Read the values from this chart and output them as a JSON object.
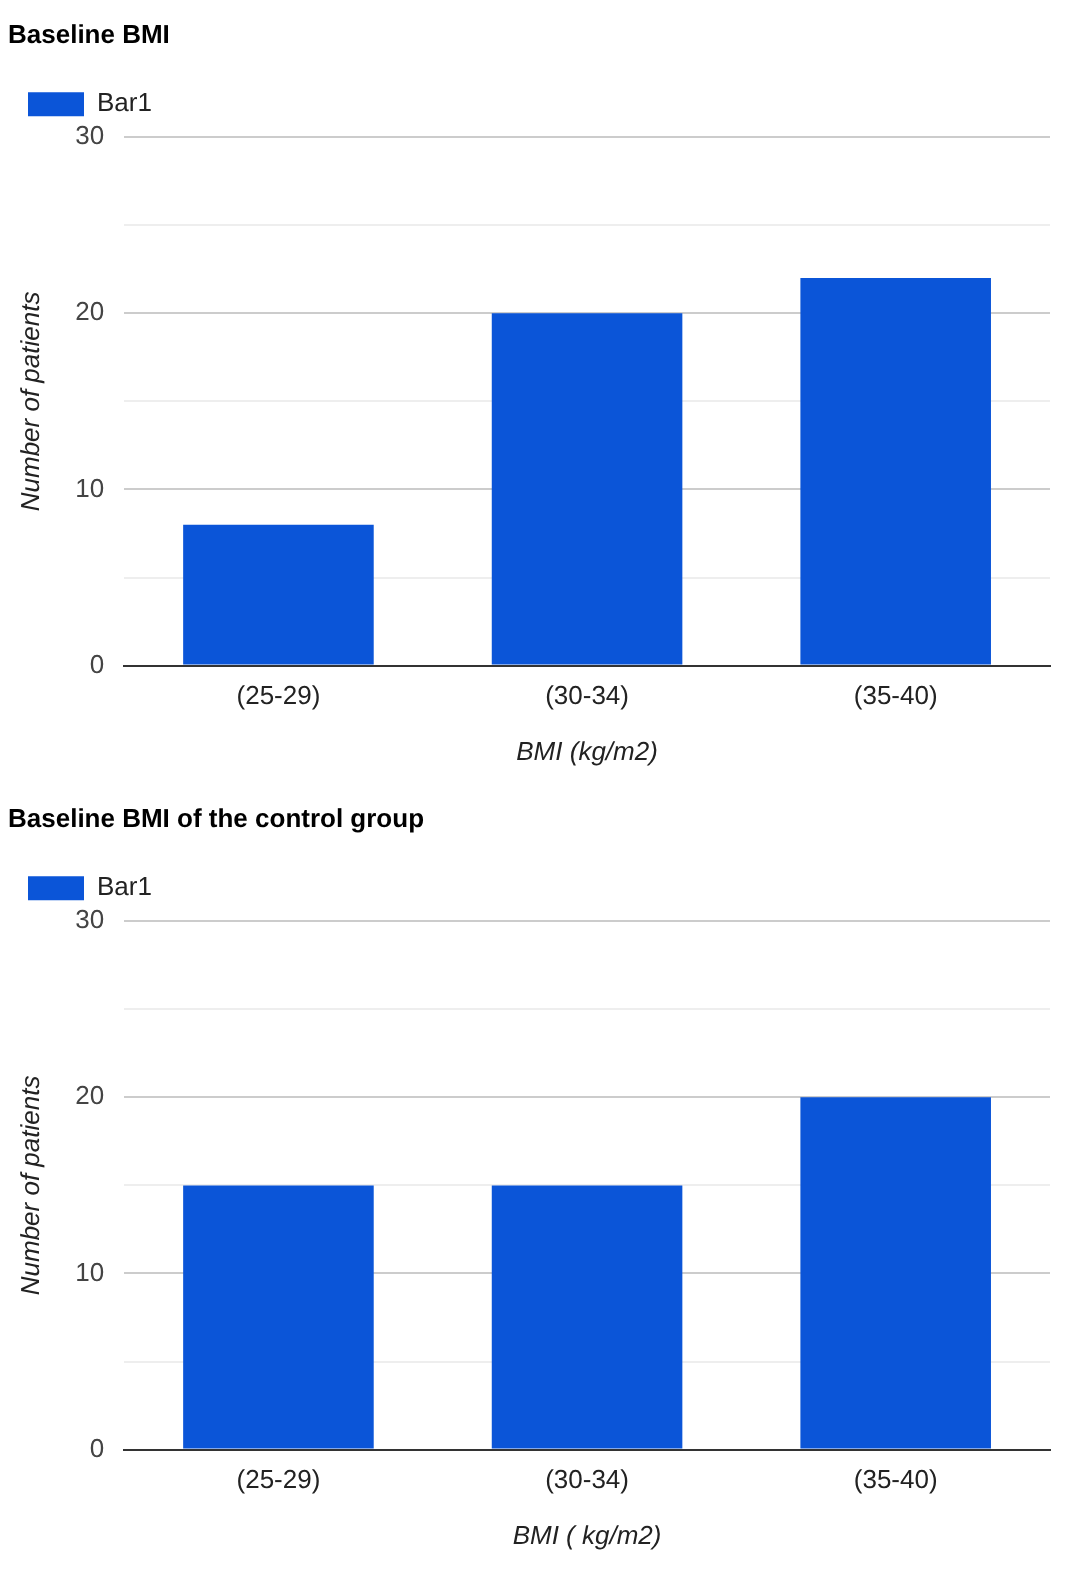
{
  "chart_data": [
    {
      "type": "bar",
      "title": "Baseline BMI",
      "xlabel": "BMI (kg/m2)",
      "ylabel": "Number of patients",
      "categories": [
        "(25-29)",
        "(30-34)",
        "(35-40)"
      ],
      "series": [
        {
          "name": "Bar1",
          "color": "#0b55d8",
          "values": [
            8,
            20,
            22
          ]
        }
      ],
      "ylim": [
        0,
        30
      ],
      "yticks": [
        0,
        {
          "value": 5,
          "label": null
        },
        10,
        {
          "value": 15,
          "label": null
        },
        20,
        {
          "value": 25,
          "label": null
        },
        30
      ],
      "grid": "y",
      "legend": "top left"
    },
    {
      "type": "bar",
      "title": "Baseline BMI of the control group",
      "xlabel": "BMI ( kg/m2)",
      "ylabel": "Number of patients",
      "categories": [
        "(25-29)",
        "(30-34)",
        "(35-40)"
      ],
      "series": [
        {
          "name": "Bar1",
          "color": "#0b55d8",
          "values": [
            15,
            15,
            20
          ]
        }
      ],
      "ylim": [
        0,
        30
      ],
      "yticks": [
        0,
        {
          "value": 5,
          "label": null
        },
        10,
        {
          "value": 15,
          "label": null
        },
        20,
        {
          "value": 25,
          "label": null
        },
        30
      ],
      "grid": "y",
      "legend": "top left"
    }
  ]
}
